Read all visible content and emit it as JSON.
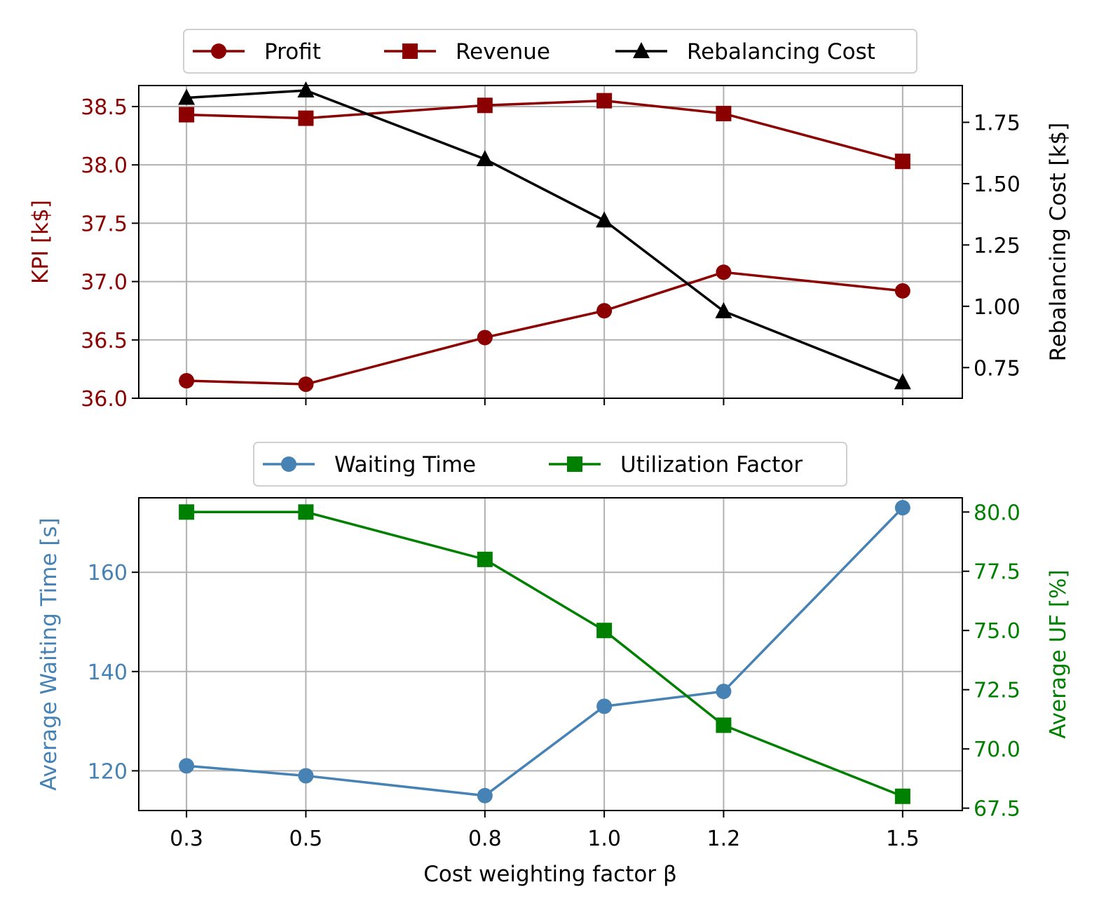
{
  "chart_data": [
    {
      "type": "line",
      "x": [
        0.3,
        0.5,
        0.8,
        1.0,
        1.2,
        1.5
      ],
      "xticks": [
        "0.3",
        "0.5",
        "0.8",
        "1.0",
        "1.2",
        "1.5"
      ],
      "grid": true,
      "legend_position": "top-center",
      "left_axis": {
        "label": "KPI [k$]",
        "color": "#8b0000",
        "ylim": [
          36.0,
          38.68
        ],
        "ticks": [
          "36.0",
          "36.5",
          "37.0",
          "37.5",
          "38.0",
          "38.5"
        ]
      },
      "right_axis": {
        "label": "Rebalancing Cost [k$]",
        "color": "#000000",
        "ylim": [
          0.625,
          1.9
        ],
        "ticks": [
          "0.75",
          "1.00",
          "1.25",
          "1.50",
          "1.75"
        ]
      },
      "series": [
        {
          "name": "Profit",
          "axis": "left",
          "marker": "circle",
          "color": "#8b0000",
          "values": [
            36.15,
            36.12,
            36.52,
            36.75,
            37.08,
            36.92
          ]
        },
        {
          "name": "Revenue",
          "axis": "left",
          "marker": "square",
          "color": "#8b0000",
          "values": [
            38.43,
            38.4,
            38.51,
            38.55,
            38.44,
            38.03
          ]
        },
        {
          "name": "Rebalancing Cost",
          "axis": "right",
          "marker": "triangle",
          "color": "#000000",
          "values": [
            1.85,
            1.88,
            1.6,
            1.35,
            0.98,
            0.69
          ]
        }
      ]
    },
    {
      "type": "line",
      "x": [
        0.3,
        0.5,
        0.8,
        1.0,
        1.2,
        1.5
      ],
      "xticks": [
        "0.3",
        "0.5",
        "0.8",
        "1.0",
        "1.2",
        "1.5"
      ],
      "xlabel": "Cost weighting factor β",
      "grid": true,
      "legend_position": "top-center",
      "left_axis": {
        "label": "Average Waiting Time [s]",
        "color": "#4682b4",
        "ylim": [
          112,
          175
        ],
        "ticks": [
          "120",
          "140",
          "160"
        ]
      },
      "right_axis": {
        "label": "Average UF [%]",
        "color": "#008000",
        "ylim": [
          67.4,
          80.6
        ],
        "ticks": [
          "67.5",
          "70.0",
          "72.5",
          "75.0",
          "77.5",
          "80.0"
        ]
      },
      "series": [
        {
          "name": "Waiting Time",
          "axis": "left",
          "marker": "circle",
          "color": "#4682b4",
          "values": [
            121,
            119,
            115,
            133,
            136,
            173
          ]
        },
        {
          "name": "Utilization Factor",
          "axis": "right",
          "marker": "square",
          "color": "#008000",
          "values": [
            80,
            80,
            78,
            75,
            71,
            68
          ]
        }
      ]
    }
  ]
}
